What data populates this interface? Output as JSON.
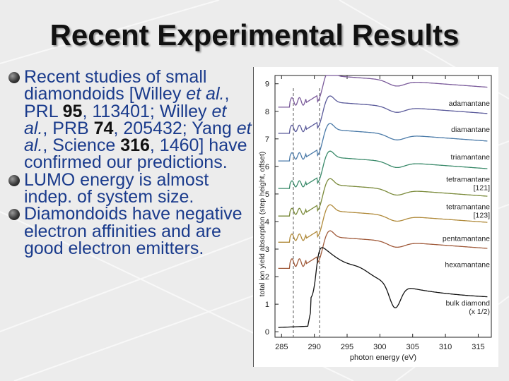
{
  "slide": {
    "title": "Recent Experimental Results"
  },
  "bullets": [
    {
      "parts": [
        {
          "t": "Recent studies of small diamondoids [Willey "
        },
        {
          "t": "et al.",
          "i": true
        },
        {
          "t": ", PRL "
        },
        {
          "t": "95",
          "b": true
        },
        {
          "t": ", 113401; Willey "
        },
        {
          "t": "et al.",
          "i": true
        },
        {
          "t": ", PRB "
        },
        {
          "t": "74",
          "b": true
        },
        {
          "t": ", 205432; Yang "
        },
        {
          "t": "et al.",
          "i": true
        },
        {
          "t": ", Science "
        },
        {
          "t": "316",
          "b": true
        },
        {
          "t": ", 1460] have confirmed our predictions."
        }
      ]
    },
    {
      "parts": [
        {
          "t": "LUMO energy is almost indep. of system size."
        }
      ]
    },
    {
      "parts": [
        {
          "t": "Diamondoids have negative electron affinities and are good electron emitters."
        }
      ]
    }
  ],
  "chart_data": {
    "type": "line",
    "xlabel": "photon energy (eV)",
    "ylabel": "total ion yield absorption (step height, offset)",
    "xlim": [
      284,
      317
    ],
    "ylim": [
      -0.2,
      9.3
    ],
    "xticks": [
      285,
      290,
      295,
      300,
      305,
      310,
      315
    ],
    "yticks": [
      0,
      1,
      2,
      3,
      4,
      5,
      6,
      7,
      8,
      9
    ],
    "reference_lines_x": [
      286.8,
      290.8
    ],
    "series": [
      {
        "name": "adamantane",
        "offset": 8.15,
        "color": "#7a5a9a",
        "labels": [
          "adamantane"
        ],
        "label_y": 8.2,
        "wiggle": 0.35
      },
      {
        "name": "diamantane",
        "offset": 7.2,
        "color": "#5a5a9a",
        "labels": [
          "diamantane"
        ],
        "label_y": 7.25,
        "wiggle": 0.3
      },
      {
        "name": "triamantane",
        "offset": 6.2,
        "color": "#4a7aa8",
        "labels": [
          "triamantane"
        ],
        "label_y": 6.25,
        "wiggle": 0.3
      },
      {
        "name": "tetramantane [121]",
        "offset": 5.2,
        "color": "#3a8a6a",
        "labels": [
          "tetramantane",
          "[121]"
        ],
        "label_y": 5.45,
        "wiggle": 0.28
      },
      {
        "name": "tetramantane [123]",
        "offset": 4.2,
        "color": "#7a8a3a",
        "labels": [
          "tetramantane",
          "[123]"
        ],
        "label_y": 4.45,
        "wiggle": 0.28
      },
      {
        "name": "pentamantane",
        "offset": 3.25,
        "color": "#b08a3a",
        "labels": [
          "pentamantane"
        ],
        "label_y": 3.3,
        "wiggle": 0.3
      },
      {
        "name": "hexamantane",
        "offset": 2.3,
        "color": "#a05a3a",
        "labels": [
          "hexamantane"
        ],
        "label_y": 2.35,
        "wiggle": 0.35
      },
      {
        "name": "bulk diamond (x 1/2)",
        "offset": 0.1,
        "color": "#111111",
        "labels": [
          "bulk diamond",
          "(x 1/2)"
        ],
        "label_y": 0.95,
        "wiggle": 0.0,
        "bulk": true
      }
    ]
  }
}
